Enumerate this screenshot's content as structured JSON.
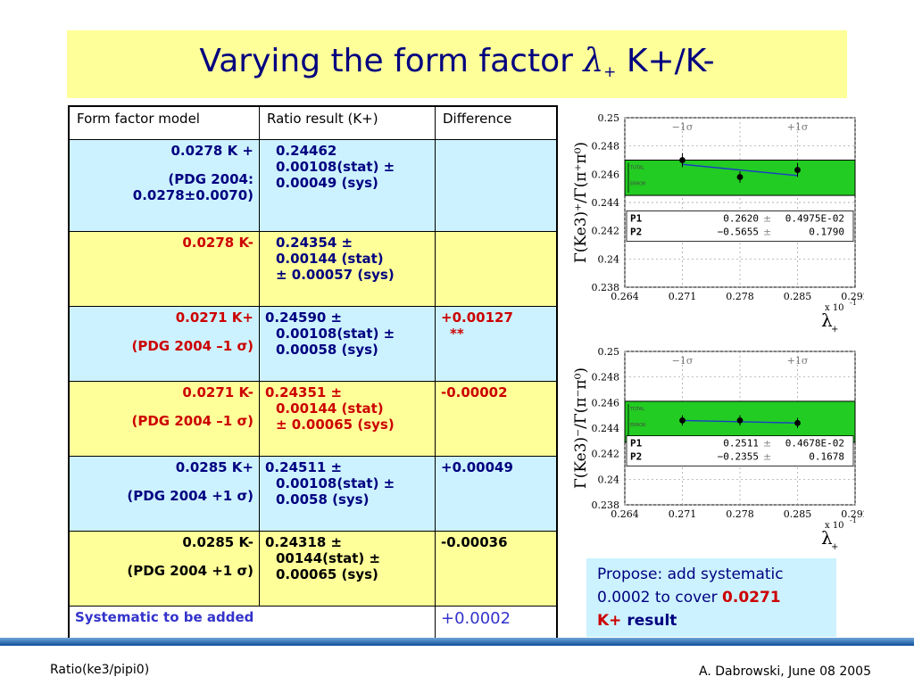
{
  "slide": {
    "title_text": "Varying the form factor ",
    "title_lambda": "λ",
    "title_sub": "+",
    "title_tail": " K+/K-"
  },
  "table": {
    "headers": [
      "Form factor model",
      "Ratio result (K+)",
      "Difference"
    ],
    "rows": [
      {
        "model": "0.0278  K +",
        "model_note": "(PDG 2004: 0.0278±0.0070)",
        "ratio_a": "0.24462",
        "ratio_b": "0.00108(stat) ±",
        "ratio_c": "0.00049 (sys)",
        "diff": "",
        "diff2": ""
      },
      {
        "model": "0.0278 K-",
        "model_note": "",
        "ratio_a": "0.24354  ±",
        "ratio_b": "0.00144 (stat)",
        "ratio_c": "± 0.00057 (sys)",
        "diff": "",
        "diff2": ""
      },
      {
        "model": "0.0271  K+",
        "model_note": "(PDG 2004 –1 σ)",
        "ratio_a": "0.24590 ±",
        "ratio_b": "0.00108(stat) ±",
        "ratio_c": "0.00058 (sys)",
        "diff": "+0.00127",
        "diff2": "**"
      },
      {
        "model": "0.0271 K-",
        "model_note": "(PDG 2004 –1 σ)",
        "ratio_a": "0.24351 ±",
        "ratio_b": "0.00144 (stat)",
        "ratio_c": "± 0.00065 (sys)",
        "diff": "-0.00002",
        "diff2": ""
      },
      {
        "model": "0.0285  K+",
        "model_note": "(PDG 2004 +1 σ)",
        "ratio_a": "0.24511 ±",
        "ratio_b": "0.00108(stat) ±",
        "ratio_c": "0.0058 (sys)",
        "diff": "+0.00049",
        "diff2": ""
      },
      {
        "model": "0.0285  K-",
        "model_note": "(PDG 2004 +1 σ)",
        "ratio_a": "0.24318  ±",
        "ratio_b": "00144(stat) ±",
        "ratio_c": "0.00065 (sys)",
        "diff": "-0.00036",
        "diff2": ""
      }
    ],
    "systematic_label": "Systematic to be added",
    "systematic_value": "+0.0002"
  },
  "propose": {
    "line1": "Propose: add systematic",
    "line2_text": "0.0002 to cover ",
    "line2_red": "0.0271",
    "line3_red": "K+",
    "line3_text": " result"
  },
  "footer": {
    "left": "Ratio(ke3/pipi0)",
    "right": "A. Dabrowski, June 08 2005"
  },
  "chart_data": [
    {
      "type": "scatter",
      "ylabel": "Γ(Ke3)⁺/Γ(π⁺π⁰)",
      "xlabel": "λ+",
      "x_multiplier": "x 10",
      "x_multiplier_exp": "-1",
      "xlim": [
        0.264,
        0.292
      ],
      "ylim": [
        0.238,
        0.25
      ],
      "xticks": [
        "0.264",
        "0.271",
        "0.278",
        "0.285",
        "0.292"
      ],
      "yticks": [
        "0.25",
        "0.248",
        "0.246",
        "0.244",
        "0.242",
        "0.24",
        "0.238"
      ],
      "band_labels": [
        "−1σ",
        "+1σ"
      ],
      "band": {
        "low": 0.2445,
        "high": 0.247,
        "color": "#22cc22"
      },
      "band_text": [
        "TOTAL",
        "ERROR"
      ],
      "points": [
        {
          "x": 0.271,
          "y": 0.247,
          "err": 0.0005
        },
        {
          "x": 0.278,
          "y": 0.2458,
          "err": 0.0004
        },
        {
          "x": 0.285,
          "y": 0.2463,
          "err": 0.0005
        }
      ],
      "fit": {
        "x": [
          0.271,
          0.285
        ],
        "y": [
          0.2467,
          0.2459
        ]
      },
      "fit_params": [
        {
          "name": "P1",
          "value": "0.2620",
          "error": "0.4975E-02"
        },
        {
          "name": "P2",
          "value": "−0.5655",
          "error": "0.1790"
        }
      ]
    },
    {
      "type": "scatter",
      "ylabel": "Γ(Ke3)⁻/Γ(π⁻π⁰)",
      "xlabel": "λ+",
      "x_multiplier": "x 10",
      "x_multiplier_exp": "-1",
      "xlim": [
        0.264,
        0.292
      ],
      "ylim": [
        0.238,
        0.25
      ],
      "xticks": [
        "0.264",
        "0.271",
        "0.278",
        "0.285",
        "0.292"
      ],
      "yticks": [
        "0.25",
        "0.248",
        "0.246",
        "0.244",
        "0.242",
        "0.24",
        "0.238"
      ],
      "band_labels": [
        "−1σ",
        "+1σ"
      ],
      "band": {
        "low": 0.2429,
        "high": 0.2461,
        "color": "#22cc22"
      },
      "band_text": [
        "TOTAL",
        "ERROR"
      ],
      "points": [
        {
          "x": 0.271,
          "y": 0.2446,
          "err": 0.0004
        },
        {
          "x": 0.278,
          "y": 0.2446,
          "err": 0.0004
        },
        {
          "x": 0.285,
          "y": 0.2444,
          "err": 0.0004
        }
      ],
      "fit": {
        "x": [
          0.271,
          0.285
        ],
        "y": [
          0.2446,
          0.2444
        ]
      },
      "fit_params": [
        {
          "name": "P1",
          "value": "0.2511",
          "error": "0.4678E-02"
        },
        {
          "name": "P2",
          "value": "−0.2355",
          "error": "0.1678"
        }
      ]
    }
  ]
}
